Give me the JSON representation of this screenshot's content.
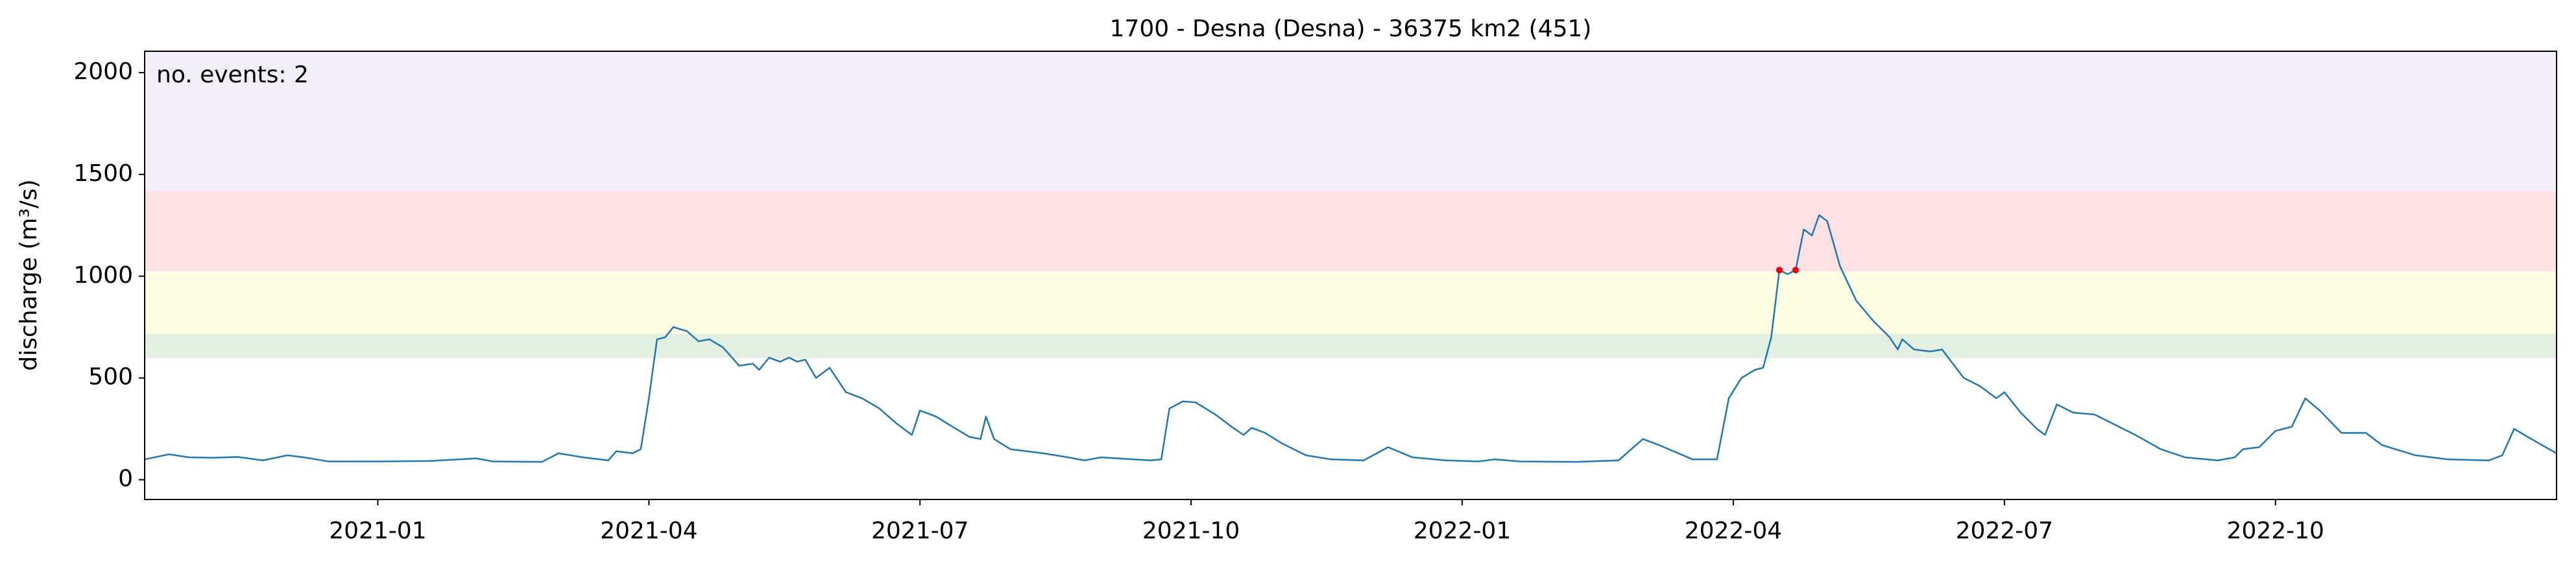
{
  "chart_data": {
    "type": "line",
    "title": "1700 - Desna (Desna) - 36375 km2 (451)",
    "y_label": "discharge (m³/s)",
    "annotation": "no. events: 2",
    "annotation_color": "#e8000b",
    "xlim": [
      -2.58,
      24.11
    ],
    "ylim": [
      -97,
      2105
    ],
    "xticks": [
      {
        "value": 0,
        "label": "2021-01"
      },
      {
        "value": 3,
        "label": "2021-04"
      },
      {
        "value": 6,
        "label": "2021-07"
      },
      {
        "value": 9,
        "label": "2021-10"
      },
      {
        "value": 12,
        "label": "2022-01"
      },
      {
        "value": 15,
        "label": "2022-04"
      },
      {
        "value": 18,
        "label": "2022-07"
      },
      {
        "value": 21,
        "label": "2022-10"
      }
    ],
    "yticks": [
      0,
      500,
      1000,
      1500,
      2000
    ],
    "bands": [
      {
        "range": [
          597,
          718
        ],
        "color": "#e3f0e1"
      },
      {
        "range": [
          718,
          1024
        ],
        "color": "#fdfde3"
      },
      {
        "range": [
          1024,
          1419
        ],
        "color": "#fde2e4"
      },
      {
        "range": [
          1419,
          2105
        ],
        "color": "#f1eef8"
      }
    ],
    "series": [
      {
        "color": "#1f77b4",
        "x": [
          -2.58,
          -2.31,
          -2.09,
          -1.82,
          -1.55,
          -1.27,
          -1.0,
          -0.82,
          -0.55,
          0,
          0.55,
          0.91,
          1.09,
          1.27,
          1.82,
          2.0,
          2.27,
          2.55,
          2.64,
          2.82,
          2.91,
          3.0,
          3.09,
          3.18,
          3.27,
          3.42,
          3.55,
          3.67,
          3.82,
          4.0,
          4.15,
          4.22,
          4.33,
          4.45,
          4.55,
          4.64,
          4.73,
          4.85,
          5.0,
          5.18,
          5.36,
          5.55,
          5.73,
          5.91,
          6.0,
          6.18,
          6.36,
          6.55,
          6.67,
          6.73,
          6.82,
          7.0,
          7.36,
          7.64,
          7.82,
          8.0,
          8.36,
          8.55,
          8.67,
          8.76,
          8.91,
          9.05,
          9.27,
          9.45,
          9.58,
          9.67,
          9.82,
          10.0,
          10.27,
          10.55,
          10.91,
          11.18,
          11.45,
          11.82,
          12.18,
          12.36,
          12.64,
          13.27,
          13.73,
          14.0,
          14.18,
          14.55,
          14.82,
          14.95,
          15.09,
          15.24,
          15.33,
          15.42,
          15.51,
          15.6,
          15.69,
          15.78,
          15.87,
          15.95,
          16.04,
          16.18,
          16.36,
          16.55,
          16.73,
          16.82,
          16.87,
          17.0,
          17.18,
          17.31,
          17.55,
          17.73,
          17.91,
          18.0,
          18.18,
          18.36,
          18.45,
          18.58,
          18.76,
          19.0,
          19.18,
          19.45,
          19.73,
          20.0,
          20.36,
          20.55,
          20.64,
          20.82,
          21.0,
          21.18,
          21.33,
          21.49,
          21.73,
          22.0,
          22.18,
          22.55,
          22.91,
          23.36,
          23.51,
          23.64,
          23.91,
          24.11
        ],
        "values": [
          100,
          125,
          110,
          108,
          112,
          95,
          120,
          110,
          90,
          90,
          92,
          100,
          105,
          90,
          88,
          130,
          110,
          95,
          140,
          130,
          150,
          400,
          690,
          700,
          750,
          730,
          680,
          690,
          650,
          560,
          570,
          540,
          600,
          580,
          600,
          580,
          590,
          500,
          550,
          430,
          400,
          350,
          280,
          220,
          340,
          310,
          260,
          210,
          200,
          310,
          200,
          150,
          130,
          110,
          95,
          110,
          100,
          95,
          100,
          350,
          385,
          380,
          320,
          260,
          220,
          255,
          230,
          180,
          120,
          100,
          95,
          160,
          110,
          95,
          90,
          100,
          90,
          88,
          95,
          200,
          170,
          100,
          100,
          400,
          500,
          540,
          550,
          700,
          1030,
          1010,
          1030,
          1230,
          1200,
          1300,
          1270,
          1050,
          880,
          780,
          700,
          640,
          690,
          640,
          630,
          640,
          500,
          460,
          400,
          430,
          330,
          250,
          220,
          370,
          330,
          320,
          280,
          220,
          150,
          110,
          95,
          110,
          150,
          160,
          240,
          260,
          400,
          340,
          230,
          230,
          170,
          120,
          100,
          95,
          120,
          250,
          180,
          130
        ]
      }
    ],
    "events": {
      "color": "#e8000b",
      "x": [
        15.51,
        15.69
      ],
      "values": [
        1030,
        1030
      ]
    }
  }
}
